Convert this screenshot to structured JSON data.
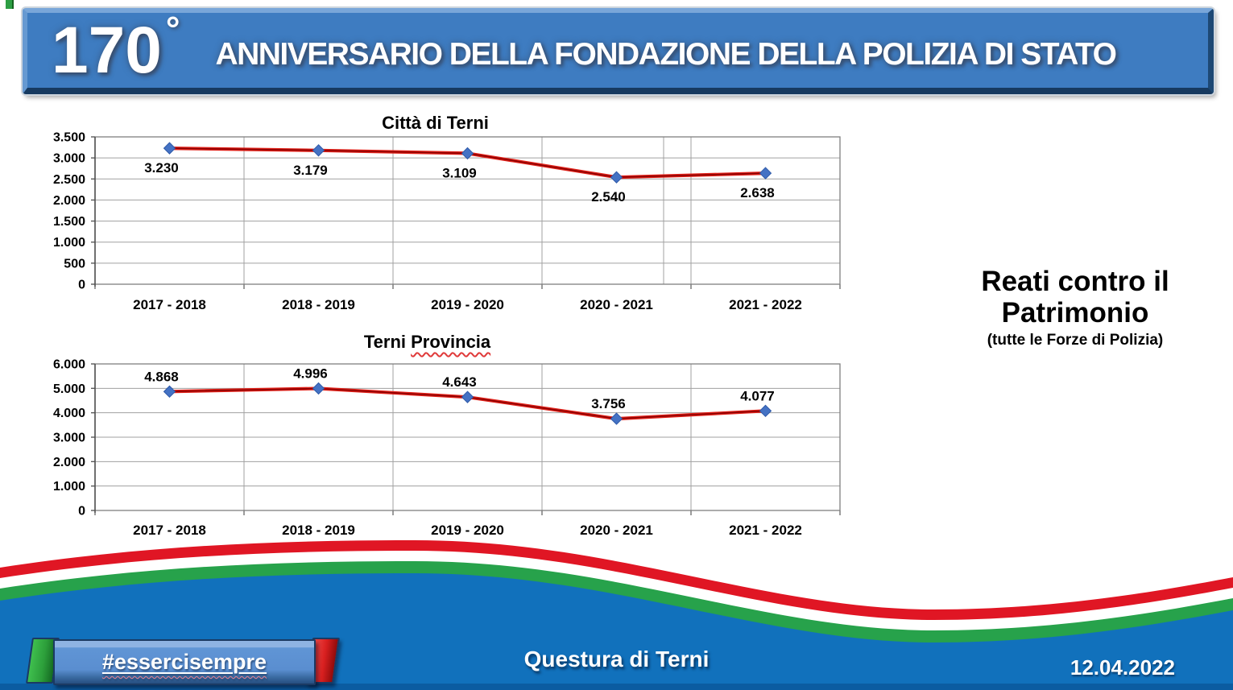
{
  "header": {
    "anniversary_number": "170",
    "degree_symbol": "°",
    "title": "ANNIVERSARIO DELLA FONDAZIONE DELLA POLIZIA DI STATO"
  },
  "side_panel": {
    "title_line1": "Reati contro il",
    "title_line2": "Patrimonio",
    "subtitle": "(tutte le Forze di Polizia)"
  },
  "footer": {
    "hashtag": "#essercisempre",
    "organization": "Questura di Terni",
    "date": "12.04.2022"
  },
  "colors": {
    "banner_blue": "#3e7cc1",
    "wave_red": "#e01624",
    "wave_green": "#27a24b",
    "wave_blue": "#1171bc",
    "wave_bottom_strip": "#0b5ca1",
    "series_line_red": "#c00000",
    "marker_blue": "#4472c4"
  },
  "chart_data": [
    {
      "type": "line",
      "title": "Città di Terni",
      "title_parts": [
        "Città di Terni",
        ""
      ],
      "categories": [
        "2017 - 2018",
        "2018 - 2019",
        "2019 - 2020",
        "2020 - 2021",
        "2021 - 2022"
      ],
      "values": [
        3230,
        3179,
        3109,
        2540,
        2638
      ],
      "value_labels": [
        "3.230",
        "3.179",
        "3.109",
        "2.540",
        "2.638"
      ],
      "xlabel": "",
      "ylabel": "",
      "ylim": [
        0,
        3500
      ],
      "ytick_step": 500,
      "ytick_labels": [
        "0",
        "500",
        "1.000",
        "1.500",
        "2.000",
        "2.500",
        "3.000",
        "3.500"
      ],
      "grid": true,
      "legend": false,
      "label_position": "below",
      "line_color": "#c00000",
      "marker": "diamond",
      "marker_color": "#4472c4"
    },
    {
      "type": "line",
      "title": "Terni Provincia",
      "title_parts": [
        "Terni ",
        "Provincia"
      ],
      "categories": [
        "2017 - 2018",
        "2018 - 2019",
        "2019 - 2020",
        "2020 - 2021",
        "2021 - 2022"
      ],
      "values": [
        4868,
        4996,
        4643,
        3756,
        4077
      ],
      "value_labels": [
        "4.868",
        "4.996",
        "4.643",
        "3.756",
        "4.077"
      ],
      "xlabel": "",
      "ylabel": "",
      "ylim": [
        0,
        6000
      ],
      "ytick_step": 1000,
      "ytick_labels": [
        "0",
        "1.000",
        "2.000",
        "3.000",
        "4.000",
        "5.000",
        "6.000"
      ],
      "grid": true,
      "legend": false,
      "label_position": "above",
      "line_color": "#c00000",
      "marker": "diamond",
      "marker_color": "#4472c4"
    }
  ]
}
